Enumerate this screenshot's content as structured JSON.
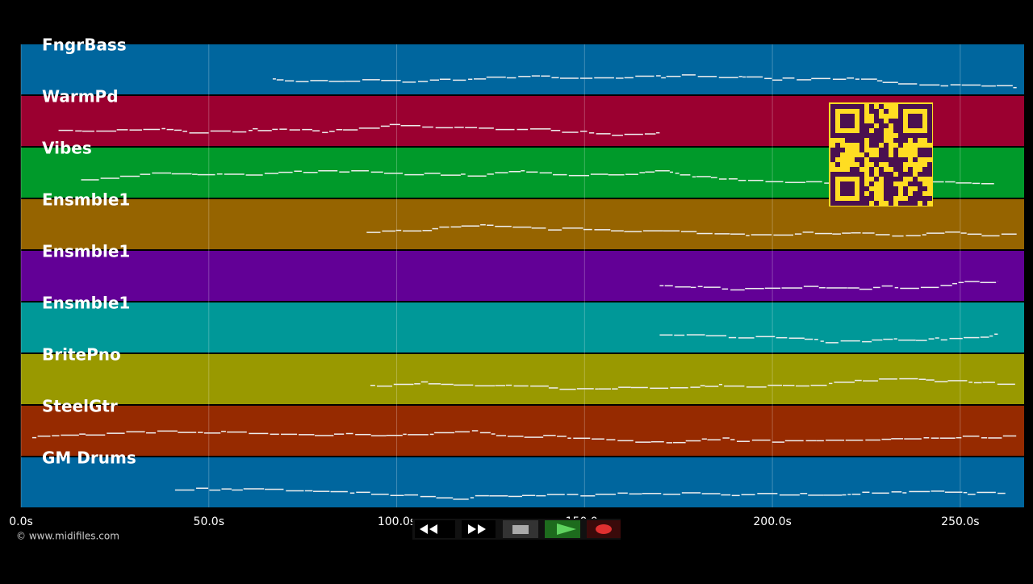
{
  "tracks": [
    {
      "name": "FngrBass",
      "color": "#00669e",
      "span": [
        67,
        265
      ]
    },
    {
      "name": "WarmPd",
      "color": "#9b0030",
      "span": [
        10,
        170
      ]
    },
    {
      "name": "Vibes",
      "color": "#009a2a",
      "span": [
        16,
        259
      ]
    },
    {
      "name": "Ensmble1",
      "color": "#966400",
      "span": [
        92,
        265
      ]
    },
    {
      "name": "Ensmble1",
      "color": "#620096",
      "span": [
        170,
        260
      ]
    },
    {
      "name": "Ensmble1",
      "color": "#009898",
      "span": [
        170,
        260
      ]
    },
    {
      "name": "BritePno",
      "color": "#999900",
      "span": [
        93,
        265
      ]
    },
    {
      "name": "SteelGtr",
      "color": "#962a00",
      "span": [
        3,
        265
      ]
    },
    {
      "name": "GM Drums",
      "color": "#00669e",
      "span": [
        41,
        262
      ]
    }
  ],
  "axis": {
    "xlim": [
      0,
      267
    ],
    "ticks": [
      {
        "value": 0,
        "label": "0.0s"
      },
      {
        "value": 50,
        "label": "50.0s"
      },
      {
        "value": 100,
        "label": "100.0s"
      },
      {
        "value": 150,
        "label": "150.0s"
      },
      {
        "value": 200,
        "label": "200.0s"
      },
      {
        "value": 250,
        "label": "250.0s"
      }
    ]
  },
  "footer": {
    "copyright": "© www.midifiles.com"
  }
}
